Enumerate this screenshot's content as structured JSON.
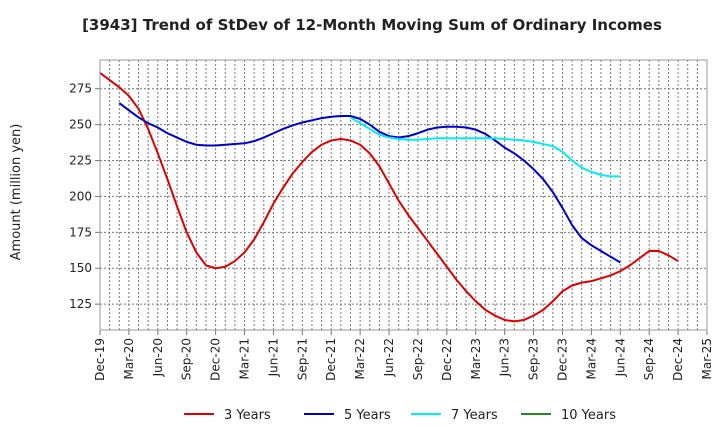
{
  "chart_data": {
    "type": "line",
    "title": "[3943]  Trend of StDev of 12-Month Moving Sum of Ordinary Incomes",
    "xlabel": "",
    "ylabel": "Amount (million yen)",
    "ylim": [
      107,
      295
    ],
    "yticks": [
      125,
      150,
      175,
      200,
      225,
      250,
      275
    ],
    "grid": true,
    "legend_position": "bottom",
    "x_tick_labels": [
      "Dec-19",
      "Mar-20",
      "Jun-20",
      "Sep-20",
      "Dec-20",
      "Mar-21",
      "Jun-21",
      "Sep-21",
      "Dec-21",
      "Mar-22",
      "Jun-22",
      "Sep-22",
      "Dec-22",
      "Mar-23",
      "Jun-23",
      "Sep-23",
      "Dec-23",
      "Mar-24",
      "Jun-24",
      "Sep-24",
      "Dec-24",
      "Mar-25"
    ],
    "x_count": 64,
    "series": [
      {
        "name": "3 Years",
        "color": "#dd0000",
        "start": 0,
        "values": [
          286,
          281,
          276,
          270,
          261,
          247,
          230,
          212,
          193,
          175,
          161,
          152,
          150,
          151,
          155,
          161,
          170,
          182,
          195,
          206,
          216,
          224,
          231,
          236,
          239,
          240,
          239,
          236,
          230,
          221,
          209,
          197,
          187,
          178,
          169,
          160,
          151,
          142,
          134,
          127,
          121,
          117,
          114,
          113,
          114,
          117,
          121,
          127,
          134,
          138,
          140,
          141,
          143,
          145,
          148,
          152,
          157,
          162,
          162,
          159,
          155
        ]
      },
      {
        "name": "5 Years",
        "color": "#0000cc",
        "start": 2,
        "values": [
          265,
          260,
          255,
          251,
          248,
          244,
          241,
          238,
          236,
          235.5,
          235.5,
          236,
          236.5,
          237,
          238.5,
          241,
          244,
          247,
          249.5,
          251.5,
          253,
          254.5,
          255.5,
          256,
          256,
          254,
          250,
          245,
          242,
          241,
          242,
          244,
          246.5,
          248,
          248.5,
          248.5,
          248,
          246.5,
          243.5,
          239,
          234,
          230,
          225,
          219,
          212,
          203,
          192,
          180,
          171,
          166,
          162,
          158,
          154
        ]
      },
      {
        "name": "7 Years",
        "color": "#00eeee",
        "start": 26,
        "values": [
          255,
          251,
          247,
          243,
          241,
          240,
          239.5,
          239.5,
          240,
          240.5,
          240.5,
          240.5,
          240.5,
          240.5,
          240.5,
          240.5,
          240,
          239.5,
          239,
          238,
          236.5,
          235,
          231,
          225,
          220,
          217,
          215,
          214,
          214
        ]
      },
      {
        "name": "10 Years",
        "color": "#228b22",
        "start": 0,
        "values": []
      }
    ]
  }
}
